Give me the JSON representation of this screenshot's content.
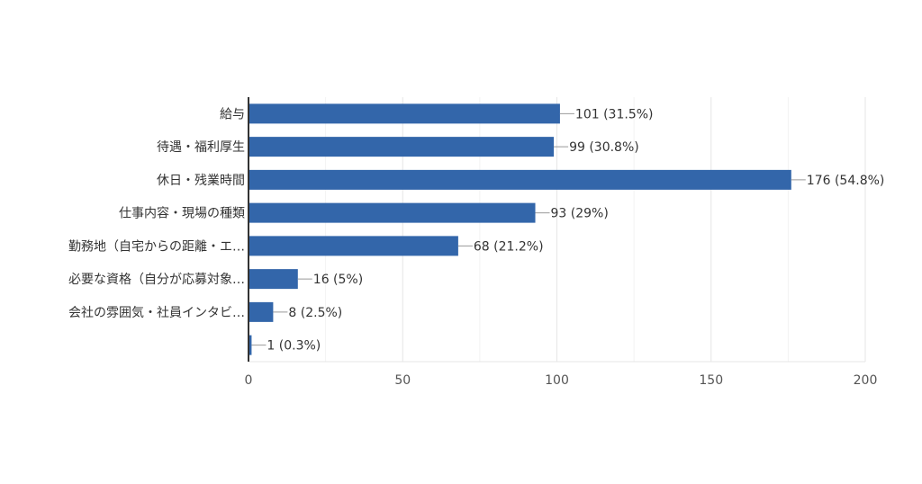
{
  "chart_data": {
    "type": "bar",
    "orientation": "horizontal",
    "categories": [
      "給与",
      "待遇・福利厚生",
      "休日・残業時間",
      "仕事内容・現場の種類",
      "勤務地（自宅からの距離・エ…",
      "必要な資格（自分が応募対象…",
      "会社の雰囲気・社員インタビ…",
      ""
    ],
    "values": [
      101,
      99,
      176,
      93,
      68,
      16,
      8,
      1
    ],
    "value_labels": [
      "101 (31.5%)",
      "99 (30.8%)",
      "176 (54.8%)",
      "93 (29%)",
      "68 (21.2%)",
      "16 (5%)",
      "8 (2.5%)",
      "1 (0.3%)"
    ],
    "xlim": [
      0,
      200
    ],
    "xticks": [
      0,
      50,
      100,
      150,
      200
    ],
    "grid": true,
    "bar_color": "#3366aa"
  }
}
